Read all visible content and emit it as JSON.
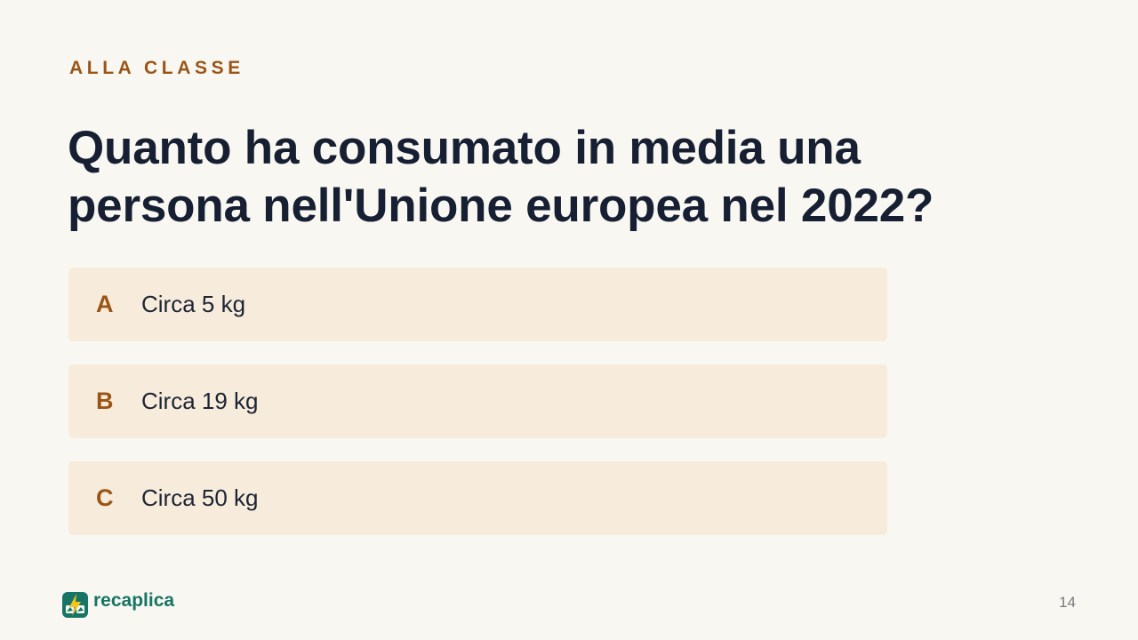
{
  "slide": {
    "kicker": "ALLA CLASSE",
    "question": "Quanto ha consumato in media una persona nell'Unione europea nel 2022?",
    "answers": [
      {
        "letter": "A",
        "text": "Circa 5 kg"
      },
      {
        "letter": "B",
        "text": "Circa 19 kg"
      },
      {
        "letter": "C",
        "text": "Circa 50 kg"
      }
    ],
    "page_number": "14"
  },
  "brand": {
    "name": "recaplica",
    "icon": "recaplica-logo-icon"
  },
  "colors": {
    "background": "#f9f7f2",
    "accent": "#9a5516",
    "brand": "#167564",
    "answer_background": "#f7ecdc",
    "text": "#172033"
  }
}
